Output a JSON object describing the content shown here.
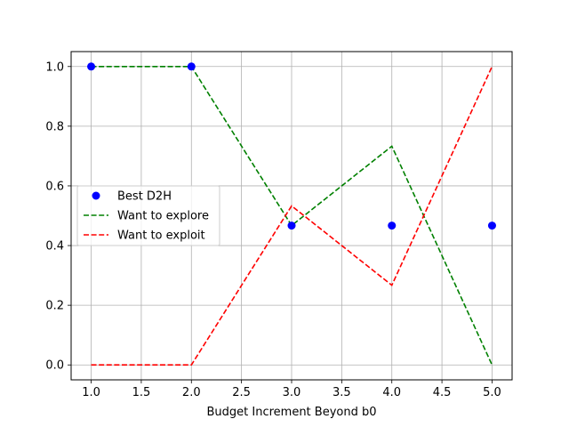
{
  "chart_data": {
    "type": "line",
    "xlabel": "Budget Increment Beyond b0",
    "ylabel": "",
    "title": "",
    "xlim": [
      0.8,
      5.2
    ],
    "ylim": [
      -0.05,
      1.05
    ],
    "xticks": [
      "1.0",
      "1.5",
      "2.0",
      "2.5",
      "3.0",
      "3.5",
      "4.0",
      "4.5",
      "5.0"
    ],
    "yticks": [
      "0.0",
      "0.2",
      "0.4",
      "0.6",
      "0.8",
      "1.0"
    ],
    "grid": true,
    "legend_position": "center-left",
    "series": [
      {
        "name": "Best D2H",
        "kind": "scatter",
        "color": "#0000ff",
        "x": [
          1,
          2,
          3,
          4,
          5
        ],
        "y": [
          1.0,
          1.0,
          0.467,
          0.467,
          0.467
        ]
      },
      {
        "name": "Want to explore",
        "kind": "dashed-line",
        "color": "#008000",
        "x": [
          1,
          2,
          3,
          4,
          5
        ],
        "y": [
          1.0,
          1.0,
          0.467,
          0.733,
          0.0
        ]
      },
      {
        "name": "Want to exploit",
        "kind": "dashed-line",
        "color": "#ff0000",
        "x": [
          1,
          2,
          3,
          4,
          5
        ],
        "y": [
          0.0,
          0.0,
          0.533,
          0.267,
          1.0
        ]
      }
    ]
  }
}
